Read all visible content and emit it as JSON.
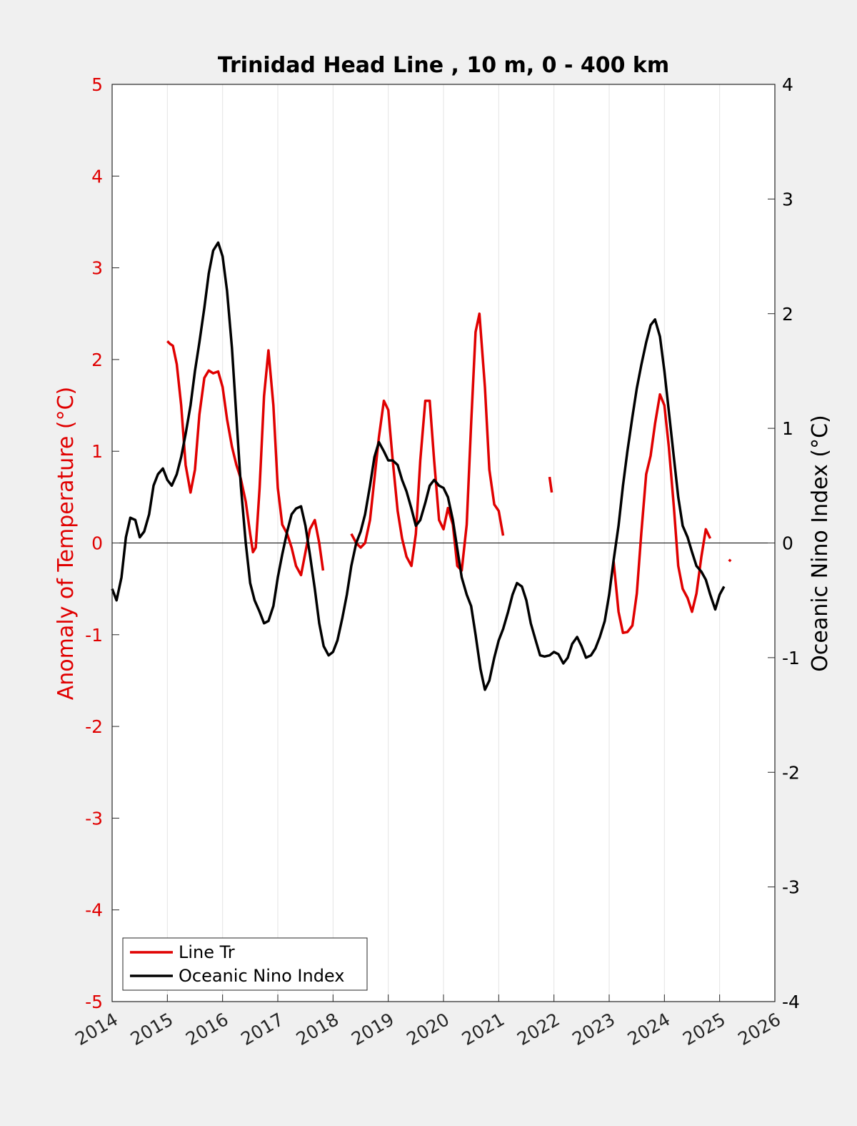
{
  "chart_data": {
    "type": "line",
    "title": "Trinidad Head Line , 10 m, 0 - 400 km",
    "x_axis": {
      "label": "",
      "range": [
        2014,
        2026
      ],
      "ticks": [
        2014,
        2015,
        2016,
        2017,
        2018,
        2019,
        2020,
        2021,
        2022,
        2023,
        2024,
        2025,
        2026
      ],
      "tick_labels": [
        "2014",
        "2015",
        "2016",
        "2017",
        "2018",
        "2019",
        "2020",
        "2021",
        "2022",
        "2023",
        "2024",
        "2025",
        "2026"
      ],
      "vertical_grid": true
    },
    "y_left": {
      "label": "Anomaly of Temperature (°C)",
      "range": [
        -5,
        5
      ],
      "ticks": [
        -5,
        -4,
        -3,
        -2,
        -1,
        0,
        1,
        2,
        3,
        4,
        5
      ],
      "tick_labels": [
        "-5",
        "-4",
        "-3",
        "-2",
        "-1",
        "0",
        "1",
        "2",
        "3",
        "4",
        "5"
      ],
      "color": "#e00000"
    },
    "y_right": {
      "label": "Oceanic Nino Index (°C)",
      "range": [
        -4,
        4
      ],
      "ticks": [
        -4,
        -3,
        -2,
        -1,
        0,
        1,
        2,
        3,
        4
      ],
      "tick_labels": [
        "-4",
        "-3",
        "-2",
        "-1",
        "0",
        "1",
        "2",
        "3",
        "4"
      ],
      "color": "#000000"
    },
    "zero_line": true,
    "legend": {
      "placement": "bottom-left",
      "entries": [
        "Line Tr",
        "Oceanic Nino Index"
      ]
    },
    "series": [
      {
        "name": "Line Tr",
        "axis": "left",
        "color": "#e00000",
        "segments": [
          [
            [
              2015.0,
              2.2
            ],
            [
              2015.05,
              2.17
            ],
            [
              2015.1,
              2.15
            ],
            [
              2015.17,
              1.95
            ],
            [
              2015.25,
              1.5
            ],
            [
              2015.33,
              0.85
            ],
            [
              2015.42,
              0.55
            ],
            [
              2015.5,
              0.8
            ],
            [
              2015.58,
              1.4
            ],
            [
              2015.67,
              1.8
            ],
            [
              2015.75,
              1.88
            ],
            [
              2015.83,
              1.85
            ],
            [
              2015.92,
              1.87
            ],
            [
              2016.0,
              1.7
            ],
            [
              2016.08,
              1.35
            ],
            [
              2016.17,
              1.05
            ],
            [
              2016.25,
              0.85
            ],
            [
              2016.33,
              0.7
            ],
            [
              2016.42,
              0.45
            ],
            [
              2016.5,
              0.1
            ],
            [
              2016.55,
              -0.1
            ],
            [
              2016.6,
              -0.05
            ],
            [
              2016.67,
              0.6
            ],
            [
              2016.75,
              1.6
            ],
            [
              2016.83,
              2.1
            ],
            [
              2016.92,
              1.5
            ],
            [
              2017.0,
              0.6
            ],
            [
              2017.08,
              0.2
            ],
            [
              2017.17,
              0.1
            ],
            [
              2017.25,
              -0.05
            ],
            [
              2017.33,
              -0.25
            ],
            [
              2017.42,
              -0.35
            ],
            [
              2017.5,
              -0.1
            ],
            [
              2017.58,
              0.15
            ],
            [
              2017.67,
              0.25
            ],
            [
              2017.75,
              0.0
            ],
            [
              2017.82,
              -0.3
            ]
          ],
          [
            [
              2018.33,
              0.1
            ],
            [
              2018.42,
              0.0
            ],
            [
              2018.5,
              -0.05
            ],
            [
              2018.58,
              0.0
            ],
            [
              2018.67,
              0.25
            ],
            [
              2018.75,
              0.7
            ],
            [
              2018.83,
              1.15
            ],
            [
              2018.92,
              1.55
            ],
            [
              2019.0,
              1.45
            ],
            [
              2019.08,
              0.9
            ],
            [
              2019.17,
              0.35
            ],
            [
              2019.25,
              0.05
            ],
            [
              2019.33,
              -0.15
            ],
            [
              2019.42,
              -0.25
            ],
            [
              2019.5,
              0.1
            ],
            [
              2019.58,
              0.9
            ],
            [
              2019.67,
              1.55
            ],
            [
              2019.75,
              1.55
            ],
            [
              2019.83,
              0.9
            ],
            [
              2019.92,
              0.25
            ],
            [
              2020.0,
              0.15
            ],
            [
              2020.08,
              0.38
            ],
            [
              2020.17,
              0.2
            ],
            [
              2020.25,
              -0.25
            ],
            [
              2020.33,
              -0.3
            ],
            [
              2020.42,
              0.2
            ],
            [
              2020.5,
              1.3
            ],
            [
              2020.58,
              2.3
            ],
            [
              2020.65,
              2.5
            ],
            [
              2020.75,
              1.7
            ],
            [
              2020.83,
              0.8
            ],
            [
              2020.92,
              0.42
            ],
            [
              2021.0,
              0.35
            ],
            [
              2021.08,
              0.08
            ]
          ],
          [
            [
              2021.92,
              0.72
            ],
            [
              2021.96,
              0.55
            ]
          ],
          [
            [
              2023.08,
              -0.2
            ],
            [
              2023.17,
              -0.75
            ],
            [
              2023.25,
              -0.98
            ],
            [
              2023.33,
              -0.97
            ],
            [
              2023.42,
              -0.9
            ],
            [
              2023.5,
              -0.55
            ],
            [
              2023.58,
              0.1
            ],
            [
              2023.67,
              0.75
            ],
            [
              2023.75,
              0.95
            ],
            [
              2023.83,
              1.3
            ],
            [
              2023.92,
              1.62
            ],
            [
              2024.0,
              1.5
            ],
            [
              2024.08,
              1.05
            ],
            [
              2024.17,
              0.4
            ],
            [
              2024.25,
              -0.25
            ],
            [
              2024.33,
              -0.5
            ],
            [
              2024.42,
              -0.6
            ],
            [
              2024.5,
              -0.75
            ],
            [
              2024.58,
              -0.55
            ],
            [
              2024.67,
              -0.15
            ],
            [
              2024.75,
              0.15
            ],
            [
              2024.83,
              0.05
            ]
          ],
          [
            [
              2025.17,
              -0.2
            ],
            [
              2025.2,
              -0.18
            ]
          ]
        ]
      },
      {
        "name": "Oceanic Nino Index",
        "axis": "right",
        "color": "#000000",
        "segments": [
          [
            [
              2014.0,
              -0.4
            ],
            [
              2014.08,
              -0.5
            ],
            [
              2014.17,
              -0.3
            ],
            [
              2014.25,
              0.05
            ],
            [
              2014.33,
              0.22
            ],
            [
              2014.42,
              0.2
            ],
            [
              2014.5,
              0.05
            ],
            [
              2014.58,
              0.1
            ],
            [
              2014.67,
              0.25
            ],
            [
              2014.75,
              0.5
            ],
            [
              2014.83,
              0.6
            ],
            [
              2014.92,
              0.65
            ],
            [
              2015.0,
              0.55
            ],
            [
              2015.08,
              0.5
            ],
            [
              2015.17,
              0.6
            ],
            [
              2015.25,
              0.75
            ],
            [
              2015.33,
              0.95
            ],
            [
              2015.42,
              1.2
            ],
            [
              2015.5,
              1.5
            ],
            [
              2015.58,
              1.75
            ],
            [
              2015.67,
              2.05
            ],
            [
              2015.75,
              2.35
            ],
            [
              2015.83,
              2.55
            ],
            [
              2015.92,
              2.62
            ],
            [
              2016.0,
              2.5
            ],
            [
              2016.08,
              2.2
            ],
            [
              2016.17,
              1.7
            ],
            [
              2016.25,
              1.1
            ],
            [
              2016.33,
              0.5
            ],
            [
              2016.42,
              0.0
            ],
            [
              2016.5,
              -0.35
            ],
            [
              2016.58,
              -0.5
            ],
            [
              2016.67,
              -0.6
            ],
            [
              2016.75,
              -0.7
            ],
            [
              2016.83,
              -0.68
            ],
            [
              2016.92,
              -0.55
            ],
            [
              2017.0,
              -0.3
            ],
            [
              2017.08,
              -0.1
            ],
            [
              2017.17,
              0.1
            ],
            [
              2017.25,
              0.25
            ],
            [
              2017.33,
              0.3
            ],
            [
              2017.42,
              0.32
            ],
            [
              2017.5,
              0.15
            ],
            [
              2017.58,
              -0.1
            ],
            [
              2017.67,
              -0.4
            ],
            [
              2017.75,
              -0.7
            ],
            [
              2017.83,
              -0.9
            ],
            [
              2017.92,
              -0.98
            ],
            [
              2018.0,
              -0.95
            ],
            [
              2018.08,
              -0.85
            ],
            [
              2018.17,
              -0.65
            ],
            [
              2018.25,
              -0.45
            ],
            [
              2018.33,
              -0.2
            ],
            [
              2018.42,
              0.0
            ],
            [
              2018.5,
              0.1
            ],
            [
              2018.58,
              0.25
            ],
            [
              2018.67,
              0.5
            ],
            [
              2018.75,
              0.75
            ],
            [
              2018.83,
              0.88
            ],
            [
              2018.92,
              0.8
            ],
            [
              2019.0,
              0.72
            ],
            [
              2019.08,
              0.72
            ],
            [
              2019.17,
              0.68
            ],
            [
              2019.25,
              0.55
            ],
            [
              2019.33,
              0.45
            ],
            [
              2019.42,
              0.3
            ],
            [
              2019.5,
              0.15
            ],
            [
              2019.58,
              0.2
            ],
            [
              2019.67,
              0.35
            ],
            [
              2019.75,
              0.5
            ],
            [
              2019.83,
              0.55
            ],
            [
              2019.92,
              0.5
            ],
            [
              2020.0,
              0.48
            ],
            [
              2020.08,
              0.4
            ],
            [
              2020.17,
              0.2
            ],
            [
              2020.25,
              -0.05
            ],
            [
              2020.33,
              -0.3
            ],
            [
              2020.42,
              -0.45
            ],
            [
              2020.5,
              -0.55
            ],
            [
              2020.58,
              -0.8
            ],
            [
              2020.67,
              -1.1
            ],
            [
              2020.75,
              -1.28
            ],
            [
              2020.83,
              -1.2
            ],
            [
              2020.92,
              -1.0
            ],
            [
              2021.0,
              -0.85
            ],
            [
              2021.08,
              -0.75
            ],
            [
              2021.17,
              -0.6
            ],
            [
              2021.25,
              -0.45
            ],
            [
              2021.33,
              -0.35
            ],
            [
              2021.42,
              -0.38
            ],
            [
              2021.5,
              -0.5
            ],
            [
              2021.58,
              -0.7
            ],
            [
              2021.67,
              -0.85
            ],
            [
              2021.75,
              -0.98
            ],
            [
              2021.83,
              -0.99
            ],
            [
              2021.92,
              -0.98
            ],
            [
              2022.0,
              -0.95
            ],
            [
              2022.08,
              -0.97
            ],
            [
              2022.17,
              -1.05
            ],
            [
              2022.25,
              -1.0
            ],
            [
              2022.33,
              -0.88
            ],
            [
              2022.42,
              -0.82
            ],
            [
              2022.5,
              -0.9
            ],
            [
              2022.58,
              -1.0
            ],
            [
              2022.67,
              -0.98
            ],
            [
              2022.75,
              -0.92
            ],
            [
              2022.83,
              -0.82
            ],
            [
              2022.92,
              -0.68
            ],
            [
              2023.0,
              -0.45
            ],
            [
              2023.08,
              -0.15
            ],
            [
              2023.17,
              0.15
            ],
            [
              2023.25,
              0.5
            ],
            [
              2023.33,
              0.8
            ],
            [
              2023.42,
              1.1
            ],
            [
              2023.5,
              1.35
            ],
            [
              2023.58,
              1.55
            ],
            [
              2023.67,
              1.75
            ],
            [
              2023.75,
              1.9
            ],
            [
              2023.83,
              1.95
            ],
            [
              2023.92,
              1.8
            ],
            [
              2024.0,
              1.5
            ],
            [
              2024.08,
              1.15
            ],
            [
              2024.17,
              0.75
            ],
            [
              2024.25,
              0.4
            ],
            [
              2024.33,
              0.15
            ],
            [
              2024.42,
              0.05
            ],
            [
              2024.5,
              -0.08
            ],
            [
              2024.58,
              -0.2
            ],
            [
              2024.67,
              -0.25
            ],
            [
              2024.75,
              -0.32
            ],
            [
              2024.83,
              -0.45
            ],
            [
              2024.92,
              -0.58
            ],
            [
              2025.0,
              -0.45
            ],
            [
              2025.08,
              -0.38
            ]
          ]
        ]
      }
    ]
  }
}
